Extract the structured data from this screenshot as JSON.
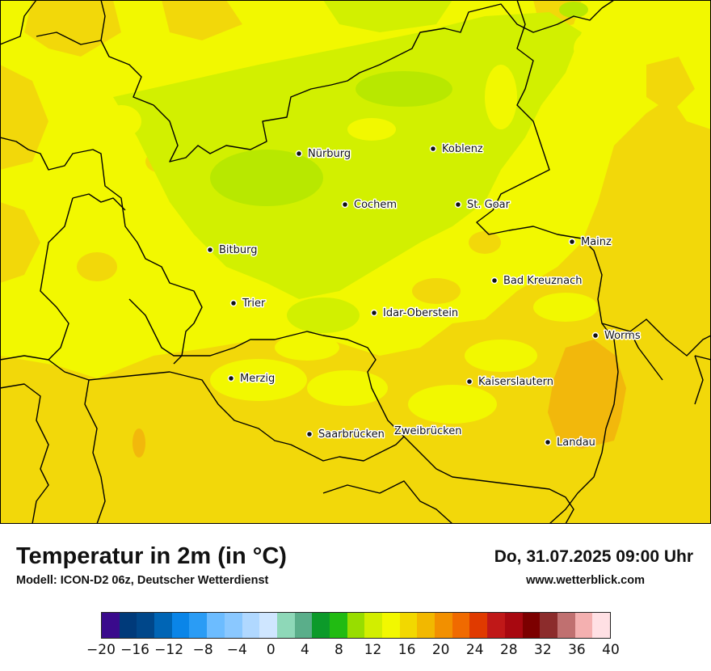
{
  "title": "Temperatur in 2m (in °C)",
  "model": "Modell: ICON-D2 06z, Deutscher Wetterdienst",
  "datetime": "Do, 31.07.2025 09:00 Uhr",
  "website": "www.wetterblick.com",
  "cities": [
    {
      "name": "Nürburg"
    },
    {
      "name": "Koblenz"
    },
    {
      "name": "Cochem"
    },
    {
      "name": "St. Goar"
    },
    {
      "name": "Mainz"
    },
    {
      "name": "Bitburg"
    },
    {
      "name": "Bad Kreuznach"
    },
    {
      "name": "Trier"
    },
    {
      "name": "Idar-Oberstein"
    },
    {
      "name": "Worms"
    },
    {
      "name": "Merzig"
    },
    {
      "name": "Kaiserslautern"
    },
    {
      "name": "Saarbrücken"
    },
    {
      "name": "Zweibrücken"
    },
    {
      "name": "Landau"
    }
  ],
  "legend": {
    "unit": "°C",
    "tick_labels": [
      "−20",
      "−16",
      "−12",
      "−8",
      "−4",
      "0",
      "4",
      "8",
      "12",
      "16",
      "20",
      "24",
      "28",
      "32",
      "36",
      "40"
    ],
    "colors": [
      "#3a0a8c",
      "#003a7a",
      "#00478a",
      "#0065b5",
      "#0a85e8",
      "#2a9cf5",
      "#6cbcff",
      "#8ac8ff",
      "#b0d8ff",
      "#cfe6ff",
      "#8ed8b8",
      "#5aae8a",
      "#0c9a2a",
      "#21bb12",
      "#98dd00",
      "#d2ee00",
      "#f2f800",
      "#f2d800",
      "#f2b800",
      "#f29000",
      "#f06a00",
      "#e03a00",
      "#c01818",
      "#a80810",
      "#7c0000",
      "#8c2c2c",
      "#c07070",
      "#f4b0b0",
      "#ffe0e4"
    ]
  },
  "map_colors": {
    "warm_orange": "#f2b80c",
    "orange_yellow": "#f2d80a",
    "yellow": "#f2f800",
    "yellow_green": "#d2f000",
    "green": "#a8e000",
    "border": "#000000"
  }
}
